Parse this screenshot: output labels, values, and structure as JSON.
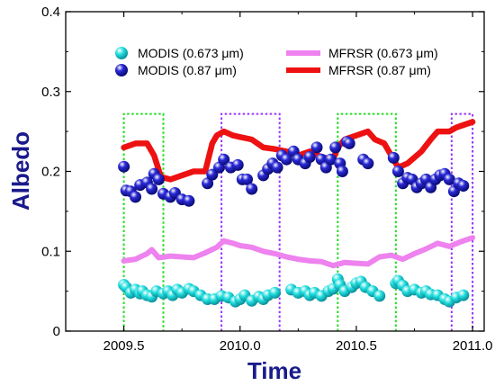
{
  "chart_data": {
    "type": "scatter",
    "title": "",
    "xlabel": "Time",
    "ylabel": "Albedo",
    "xlim": [
      2009.25,
      2011.05
    ],
    "ylim": [
      0,
      0.4
    ],
    "x_ticks": [
      "2009.5",
      "2010.0",
      "2010.5",
      "2011.0"
    ],
    "y_ticks": [
      "0",
      "0.1",
      "0.2",
      "0.3",
      "0.4"
    ],
    "legend_position": "top",
    "series": [
      {
        "name": "MODIS (0.673 μm)",
        "kind": "scatter",
        "color": "#22dede",
        "points": [
          [
            2009.5,
            0.058
          ],
          [
            2009.51,
            0.055
          ],
          [
            2009.53,
            0.048
          ],
          [
            2009.55,
            0.052
          ],
          [
            2009.57,
            0.047
          ],
          [
            2009.58,
            0.05
          ],
          [
            2009.6,
            0.045
          ],
          [
            2009.62,
            0.043
          ],
          [
            2009.64,
            0.05
          ],
          [
            2009.67,
            0.047
          ],
          [
            2009.69,
            0.05
          ],
          [
            2009.71,
            0.045
          ],
          [
            2009.73,
            0.052
          ],
          [
            2009.75,
            0.048
          ],
          [
            2009.78,
            0.053
          ],
          [
            2009.8,
            0.05
          ],
          [
            2009.83,
            0.045
          ],
          [
            2009.86,
            0.04
          ],
          [
            2009.89,
            0.04
          ],
          [
            2009.92,
            0.044
          ],
          [
            2009.95,
            0.042
          ],
          [
            2009.98,
            0.037
          ],
          [
            2010.0,
            0.04
          ],
          [
            2010.02,
            0.045
          ],
          [
            2010.05,
            0.038
          ],
          [
            2010.08,
            0.043
          ],
          [
            2010.1,
            0.04
          ],
          [
            2010.12,
            0.045
          ],
          [
            2010.15,
            0.048
          ],
          [
            2010.22,
            0.052
          ],
          [
            2010.25,
            0.048
          ],
          [
            2010.28,
            0.05
          ],
          [
            2010.3,
            0.045
          ],
          [
            2010.32,
            0.048
          ],
          [
            2010.35,
            0.044
          ],
          [
            2010.38,
            0.05
          ],
          [
            2010.4,
            0.053
          ],
          [
            2010.42,
            0.065
          ],
          [
            2010.43,
            0.058
          ],
          [
            2010.45,
            0.05
          ],
          [
            2010.48,
            0.055
          ],
          [
            2010.5,
            0.06
          ],
          [
            2010.52,
            0.062
          ],
          [
            2010.54,
            0.055
          ],
          [
            2010.57,
            0.05
          ],
          [
            2010.6,
            0.044
          ],
          [
            2010.67,
            0.06
          ],
          [
            2010.68,
            0.063
          ],
          [
            2010.7,
            0.057
          ],
          [
            2010.72,
            0.05
          ],
          [
            2010.75,
            0.052
          ],
          [
            2010.78,
            0.048
          ],
          [
            2010.8,
            0.05
          ],
          [
            2010.82,
            0.046
          ],
          [
            2010.85,
            0.045
          ],
          [
            2010.88,
            0.04
          ],
          [
            2010.9,
            0.037
          ],
          [
            2010.93,
            0.042
          ],
          [
            2010.96,
            0.045
          ]
        ]
      },
      {
        "name": "MODIS (0.87 μm)",
        "kind": "scatter",
        "color": "#2020c8",
        "points": [
          [
            2009.5,
            0.206
          ],
          [
            2009.51,
            0.176
          ],
          [
            2009.53,
            0.175
          ],
          [
            2009.55,
            0.168
          ],
          [
            2009.57,
            0.183
          ],
          [
            2009.6,
            0.186
          ],
          [
            2009.62,
            0.178
          ],
          [
            2009.63,
            0.197
          ],
          [
            2009.65,
            0.19
          ],
          [
            2009.67,
            0.172
          ],
          [
            2009.7,
            0.168
          ],
          [
            2009.72,
            0.173
          ],
          [
            2009.75,
            0.165
          ],
          [
            2009.78,
            0.163
          ],
          [
            2009.86,
            0.185
          ],
          [
            2009.88,
            0.196
          ],
          [
            2009.91,
            0.205
          ],
          [
            2009.93,
            0.215
          ],
          [
            2009.96,
            0.205
          ],
          [
            2009.99,
            0.208
          ],
          [
            2010.01,
            0.19
          ],
          [
            2010.03,
            0.19
          ],
          [
            2010.05,
            0.178
          ],
          [
            2010.1,
            0.195
          ],
          [
            2010.12,
            0.203
          ],
          [
            2010.14,
            0.21
          ],
          [
            2010.16,
            0.205
          ],
          [
            2010.18,
            0.22
          ],
          [
            2010.2,
            0.215
          ],
          [
            2010.23,
            0.225
          ],
          [
            2010.25,
            0.215
          ],
          [
            2010.28,
            0.21
          ],
          [
            2010.3,
            0.218
          ],
          [
            2010.33,
            0.23
          ],
          [
            2010.35,
            0.215
          ],
          [
            2010.37,
            0.205
          ],
          [
            2010.39,
            0.215
          ],
          [
            2010.41,
            0.23
          ],
          [
            2010.43,
            0.21
          ],
          [
            2010.44,
            0.2
          ],
          [
            2010.46,
            0.237
          ],
          [
            2010.47,
            0.235
          ],
          [
            2010.53,
            0.215
          ],
          [
            2010.55,
            0.21
          ],
          [
            2010.66,
            0.217
          ],
          [
            2010.68,
            0.2
          ],
          [
            2010.7,
            0.185
          ],
          [
            2010.72,
            0.192
          ],
          [
            2010.74,
            0.19
          ],
          [
            2010.76,
            0.18
          ],
          [
            2010.78,
            0.185
          ],
          [
            2010.8,
            0.19
          ],
          [
            2010.82,
            0.18
          ],
          [
            2010.84,
            0.19
          ],
          [
            2010.86,
            0.195
          ],
          [
            2010.88,
            0.197
          ],
          [
            2010.9,
            0.19
          ],
          [
            2010.92,
            0.175
          ],
          [
            2010.94,
            0.185
          ],
          [
            2010.96,
            0.182
          ]
        ]
      },
      {
        "name": "MFRSR (0.673 μm)",
        "kind": "line",
        "color": "#ee82ee",
        "points": [
          [
            2009.5,
            0.088
          ],
          [
            2009.55,
            0.09
          ],
          [
            2009.6,
            0.097
          ],
          [
            2009.62,
            0.102
          ],
          [
            2009.65,
            0.092
          ],
          [
            2009.7,
            0.094
          ],
          [
            2009.75,
            0.093
          ],
          [
            2009.8,
            0.092
          ],
          [
            2009.85,
            0.098
          ],
          [
            2009.9,
            0.105
          ],
          [
            2009.93,
            0.113
          ],
          [
            2009.97,
            0.11
          ],
          [
            2010.0,
            0.107
          ],
          [
            2010.05,
            0.105
          ],
          [
            2010.1,
            0.1
          ],
          [
            2010.15,
            0.097
          ],
          [
            2010.2,
            0.093
          ],
          [
            2010.25,
            0.09
          ],
          [
            2010.3,
            0.088
          ],
          [
            2010.35,
            0.087
          ],
          [
            2010.4,
            0.082
          ],
          [
            2010.45,
            0.086
          ],
          [
            2010.5,
            0.085
          ],
          [
            2010.55,
            0.084
          ],
          [
            2010.6,
            0.093
          ],
          [
            2010.65,
            0.095
          ],
          [
            2010.7,
            0.09
          ],
          [
            2010.75,
            0.097
          ],
          [
            2010.8,
            0.103
          ],
          [
            2010.85,
            0.11
          ],
          [
            2010.9,
            0.106
          ],
          [
            2010.95,
            0.112
          ],
          [
            2011.0,
            0.117
          ]
        ]
      },
      {
        "name": "MFRSR (0.87 μm)",
        "kind": "line",
        "color": "#ee1111",
        "points": [
          [
            2009.5,
            0.23
          ],
          [
            2009.55,
            0.235
          ],
          [
            2009.6,
            0.235
          ],
          [
            2009.63,
            0.22
          ],
          [
            2009.66,
            0.193
          ],
          [
            2009.7,
            0.19
          ],
          [
            2009.75,
            0.195
          ],
          [
            2009.8,
            0.2
          ],
          [
            2009.85,
            0.2
          ],
          [
            2009.88,
            0.235
          ],
          [
            2009.9,
            0.245
          ],
          [
            2009.93,
            0.25
          ],
          [
            2009.97,
            0.245
          ],
          [
            2010.0,
            0.243
          ],
          [
            2010.05,
            0.24
          ],
          [
            2010.1,
            0.23
          ],
          [
            2010.15,
            0.228
          ],
          [
            2010.2,
            0.225
          ],
          [
            2010.25,
            0.22
          ],
          [
            2010.3,
            0.225
          ],
          [
            2010.35,
            0.218
          ],
          [
            2010.4,
            0.215
          ],
          [
            2010.42,
            0.23
          ],
          [
            2010.45,
            0.24
          ],
          [
            2010.5,
            0.245
          ],
          [
            2010.55,
            0.25
          ],
          [
            2010.58,
            0.24
          ],
          [
            2010.62,
            0.235
          ],
          [
            2010.65,
            0.22
          ],
          [
            2010.68,
            0.205
          ],
          [
            2010.72,
            0.21
          ],
          [
            2010.78,
            0.225
          ],
          [
            2010.82,
            0.24
          ],
          [
            2010.85,
            0.25
          ],
          [
            2010.9,
            0.25
          ],
          [
            2010.93,
            0.255
          ],
          [
            2010.96,
            0.258
          ],
          [
            2011.0,
            0.262
          ]
        ]
      }
    ],
    "shaded_periods": [
      {
        "color": "#22dd22",
        "x0": 2009.5,
        "x1": 2009.67,
        "y_top": 0.272
      },
      {
        "color": "#9933ff",
        "x0": 2009.92,
        "x1": 2010.17,
        "y_top": 0.272
      },
      {
        "color": "#22dd22",
        "x0": 2010.42,
        "x1": 2010.67,
        "y_top": 0.272
      },
      {
        "color": "#9933ff",
        "x0": 2010.91,
        "x1": 2011.0,
        "y_top": 0.272
      }
    ]
  }
}
